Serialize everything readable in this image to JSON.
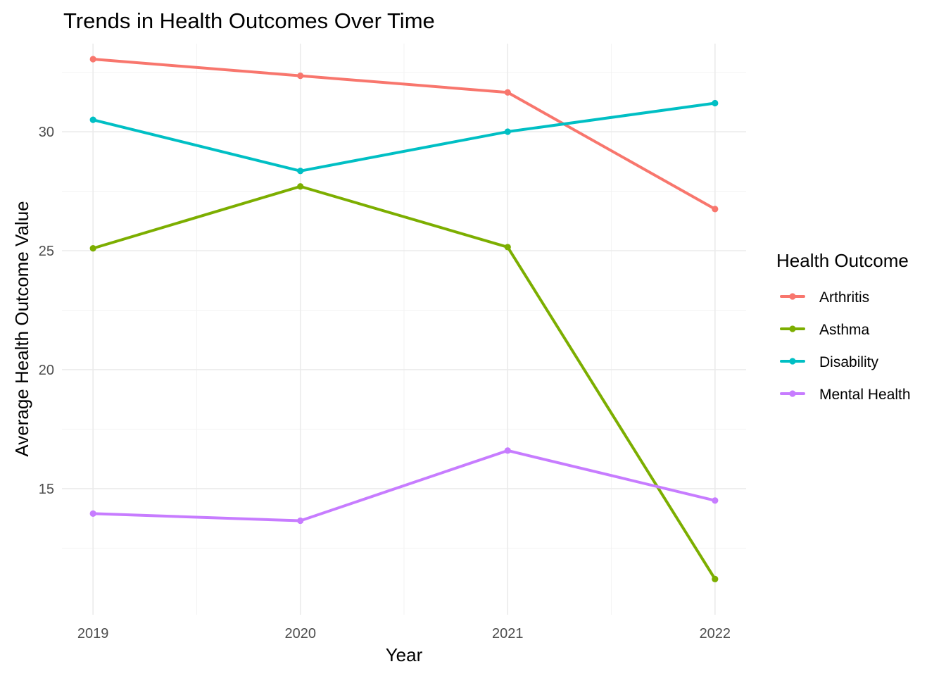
{
  "chart_data": {
    "type": "line",
    "title": "Trends in Health Outcomes Over Time",
    "xlabel": "Year",
    "ylabel": "Average Health Outcome Value",
    "x": [
      2019,
      2020,
      2021,
      2022
    ],
    "x_tick_labels": [
      "2019",
      "2020",
      "2021",
      "2022"
    ],
    "y_ticks": [
      15,
      20,
      25,
      30
    ],
    "y_tick_labels": [
      "15",
      "20",
      "25",
      "30"
    ],
    "ylim": [
      9.7,
      33.7
    ],
    "xlim": [
      2018.85,
      2022.15
    ],
    "grid": true,
    "legend": {
      "title": "Health Outcome",
      "position": "right"
    },
    "series": [
      {
        "name": "Arthritis",
        "color": "#F8766D",
        "values": [
          33.05,
          32.35,
          31.65,
          26.75
        ]
      },
      {
        "name": "Asthma",
        "color": "#7CAE00",
        "values": [
          25.1,
          27.7,
          25.15,
          11.2
        ]
      },
      {
        "name": "Disability",
        "color": "#00BFC4",
        "values": [
          30.5,
          28.35,
          30.0,
          31.2
        ]
      },
      {
        "name": "Mental Health",
        "color": "#C77CFF",
        "values": [
          13.95,
          13.65,
          16.6,
          14.5
        ]
      }
    ]
  }
}
